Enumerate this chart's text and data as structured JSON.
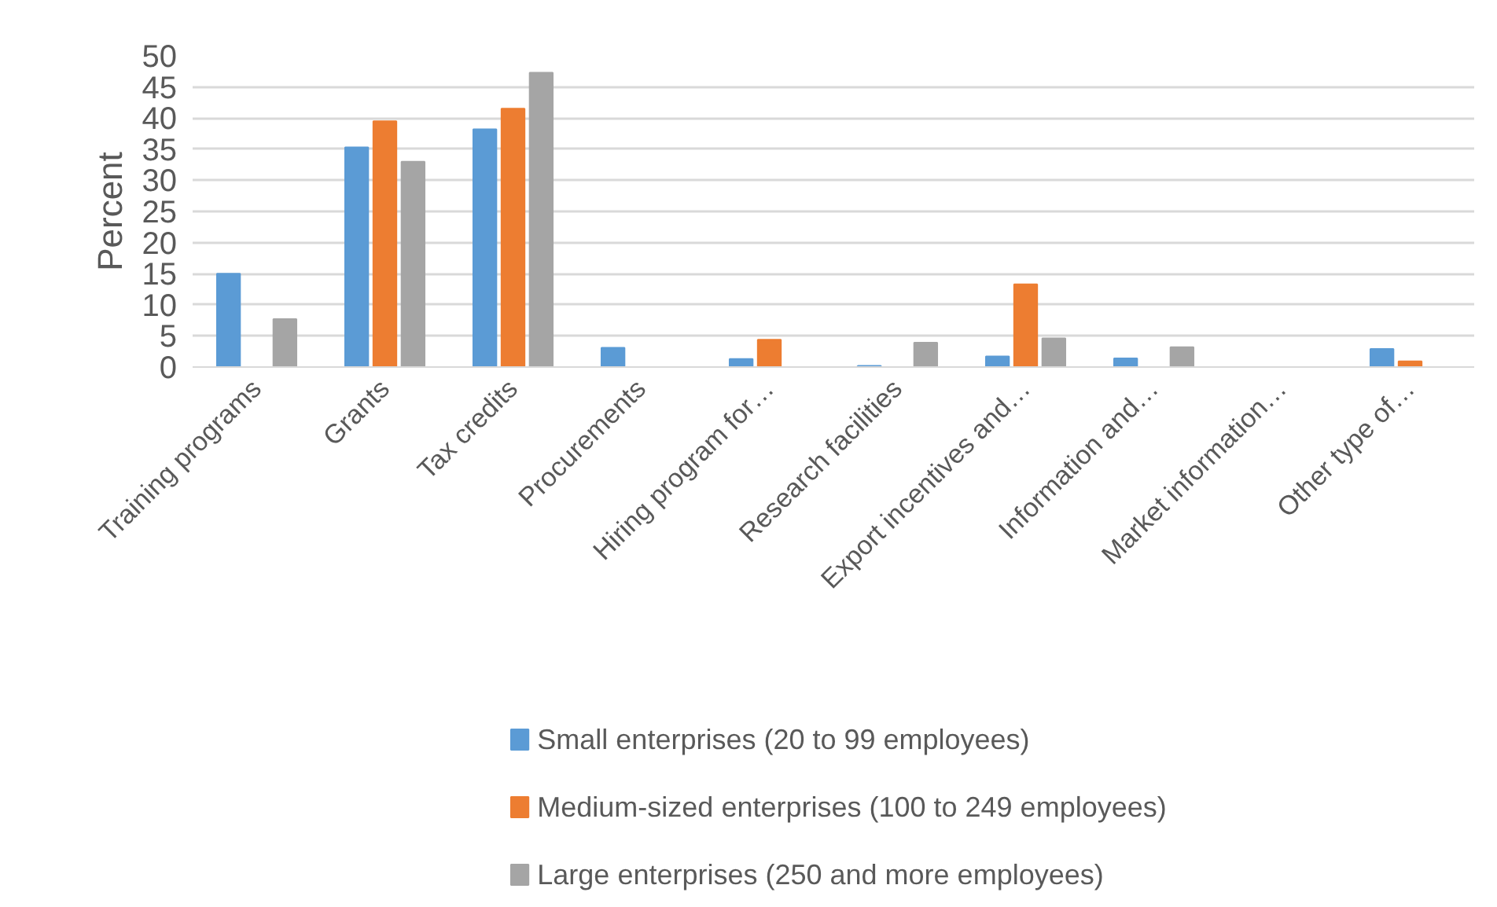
{
  "chart_data": {
    "type": "bar",
    "ylabel": "Percent",
    "categories": [
      "Training programs",
      "Grants",
      "Tax credits",
      "Procurements",
      "Hiring program for…",
      "Research facilities",
      "Export incentives and…",
      "Information and…",
      "Market information…",
      "Other type of…"
    ],
    "series": [
      {
        "name": "Small enterprises (20 to 99 employees)",
        "color": "#5b9bd5",
        "values": [
          15,
          35.3,
          38.2,
          3.1,
          1.3,
          0.2,
          1.7,
          1.4,
          null,
          2.9
        ]
      },
      {
        "name": "Medium-sized enterprises (100 to 249 employees)",
        "color": "#ed7d31",
        "values": [
          null,
          39.5,
          41.5,
          null,
          4.4,
          null,
          13.3,
          null,
          null,
          0.9
        ]
      },
      {
        "name": "Large enterprises (250 and more employees)",
        "color": "#a5a5a5",
        "values": [
          7.7,
          33,
          47.3,
          null,
          null,
          3.9,
          4.6,
          3.2,
          null,
          null
        ]
      }
    ],
    "ylim": [
      0,
      50
    ],
    "yticks": [
      0,
      5,
      10,
      15,
      20,
      25,
      30,
      35,
      40,
      45,
      50
    ],
    "grid": "y",
    "legend": "bottom"
  }
}
